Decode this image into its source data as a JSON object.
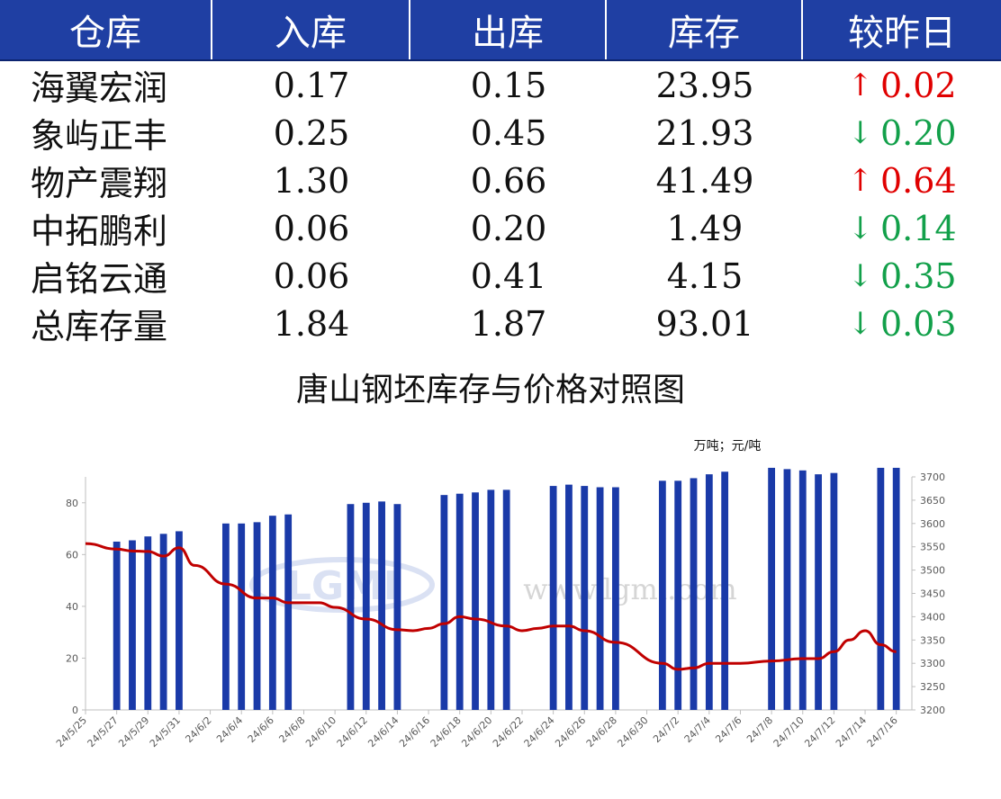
{
  "table": {
    "headers": [
      "仓库",
      "入库",
      "出库",
      "库存",
      "较昨日"
    ],
    "rows": [
      {
        "name": "海翼宏润",
        "in": "0.17",
        "out": "0.15",
        "stock": "23.95",
        "dir": "up",
        "change": "0.02"
      },
      {
        "name": "象屿正丰",
        "in": "0.25",
        "out": "0.45",
        "stock": "21.93",
        "dir": "down",
        "change": "0.20"
      },
      {
        "name": "物产震翔",
        "in": "1.30",
        "out": "0.66",
        "stock": "41.49",
        "dir": "up",
        "change": "0.64"
      },
      {
        "name": "中拓鹏利",
        "in": "0.06",
        "out": "0.20",
        "stock": "1.49",
        "dir": "down",
        "change": "0.14"
      },
      {
        "name": "启铭云通",
        "in": "0.06",
        "out": "0.41",
        "stock": "4.15",
        "dir": "down",
        "change": "0.35"
      },
      {
        "name": "总库存量",
        "in": "1.84",
        "out": "1.87",
        "stock": "93.01",
        "dir": "down",
        "change": "0.03"
      }
    ],
    "colors": {
      "header_bg": "#1f3fa3",
      "up": "#e00000",
      "down": "#12a04a"
    }
  },
  "chart_data": {
    "type": "bar",
    "title": "唐山钢坯库存与价格对照图",
    "unit_label": "万吨；元/吨",
    "watermark": "www.lgmi.com",
    "x_tick_labels": [
      "24/5/25",
      "24/5/27",
      "24/5/29",
      "24/5/31",
      "24/6/2",
      "24/6/4",
      "24/6/6",
      "24/6/8",
      "24/6/10",
      "24/6/12",
      "24/6/14",
      "24/6/16",
      "24/6/18",
      "24/6/20",
      "24/6/22",
      "24/6/24",
      "24/6/26",
      "24/6/28",
      "24/6/30",
      "24/7/2",
      "24/7/4",
      "24/7/6",
      "24/7/8",
      "24/7/10",
      "24/7/12",
      "24/7/14",
      "24/7/16"
    ],
    "x_range": [
      "2024-05-25",
      "2024-07-17"
    ],
    "y_left": {
      "min": 0,
      "max": 90,
      "ticks": [
        0,
        20,
        40,
        60,
        80
      ]
    },
    "y_right": {
      "min": 3200,
      "max": 3700,
      "ticks": [
        3200,
        3250,
        3300,
        3350,
        3400,
        3450,
        3500,
        3550,
        3600,
        3650,
        3700
      ]
    },
    "series": [
      {
        "type": "bar",
        "axis": "left",
        "color": "#1a3aa8",
        "points": [
          [
            "2024-05-27",
            65
          ],
          [
            "2024-05-28",
            65.5
          ],
          [
            "2024-05-29",
            67
          ],
          [
            "2024-05-30",
            68
          ],
          [
            "2024-05-31",
            69
          ],
          [
            "2024-06-03",
            72
          ],
          [
            "2024-06-04",
            72
          ],
          [
            "2024-06-05",
            72.5
          ],
          [
            "2024-06-06",
            75
          ],
          [
            "2024-06-07",
            75.5
          ],
          [
            "2024-06-11",
            79.5
          ],
          [
            "2024-06-12",
            80
          ],
          [
            "2024-06-13",
            80.5
          ],
          [
            "2024-06-14",
            79.5
          ],
          [
            "2024-06-17",
            83
          ],
          [
            "2024-06-18",
            83.5
          ],
          [
            "2024-06-19",
            84
          ],
          [
            "2024-06-20",
            85
          ],
          [
            "2024-06-21",
            85
          ],
          [
            "2024-06-24",
            86.5
          ],
          [
            "2024-06-25",
            87
          ],
          [
            "2024-06-26",
            86.5
          ],
          [
            "2024-06-27",
            86
          ],
          [
            "2024-06-28",
            86
          ],
          [
            "2024-07-01",
            88.5
          ],
          [
            "2024-07-02",
            88.5
          ],
          [
            "2024-07-03",
            89.5
          ],
          [
            "2024-07-04",
            91
          ],
          [
            "2024-07-05",
            92
          ],
          [
            "2024-07-08",
            93.5
          ],
          [
            "2024-07-09",
            93
          ],
          [
            "2024-07-10",
            92.5
          ],
          [
            "2024-07-11",
            91
          ],
          [
            "2024-07-12",
            91.5
          ],
          [
            "2024-07-15",
            93.5
          ],
          [
            "2024-07-16",
            93.5
          ]
        ]
      },
      {
        "type": "line",
        "axis": "right",
        "color": "#c00000",
        "points": [
          [
            "2024-05-25",
            3557
          ],
          [
            "2024-05-27",
            3545
          ],
          [
            "2024-05-28",
            3541
          ],
          [
            "2024-05-29",
            3540
          ],
          [
            "2024-05-30",
            3530
          ],
          [
            "2024-05-31",
            3548
          ],
          [
            "2024-06-01",
            3510
          ],
          [
            "2024-06-03",
            3470
          ],
          [
            "2024-06-05",
            3440
          ],
          [
            "2024-06-06",
            3440
          ],
          [
            "2024-06-07",
            3430
          ],
          [
            "2024-06-09",
            3430
          ],
          [
            "2024-06-10",
            3420
          ],
          [
            "2024-06-12",
            3395
          ],
          [
            "2024-06-14",
            3372
          ],
          [
            "2024-06-15",
            3370
          ],
          [
            "2024-06-16",
            3375
          ],
          [
            "2024-06-17",
            3385
          ],
          [
            "2024-06-18",
            3400
          ],
          [
            "2024-06-19",
            3395
          ],
          [
            "2024-06-21",
            3380
          ],
          [
            "2024-06-22",
            3370
          ],
          [
            "2024-06-23",
            3375
          ],
          [
            "2024-06-24",
            3380
          ],
          [
            "2024-06-25",
            3380
          ],
          [
            "2024-06-26",
            3370
          ],
          [
            "2024-06-28",
            3345
          ],
          [
            "2024-07-01",
            3300
          ],
          [
            "2024-07-02",
            3287
          ],
          [
            "2024-07-03",
            3290
          ],
          [
            "2024-07-04",
            3300
          ],
          [
            "2024-07-06",
            3300
          ],
          [
            "2024-07-08",
            3305
          ],
          [
            "2024-07-10",
            3310
          ],
          [
            "2024-07-11",
            3310
          ],
          [
            "2024-07-12",
            3325
          ],
          [
            "2024-07-13",
            3350
          ],
          [
            "2024-07-14",
            3370
          ],
          [
            "2024-07-15",
            3340
          ],
          [
            "2024-07-16",
            3325
          ]
        ]
      }
    ]
  }
}
